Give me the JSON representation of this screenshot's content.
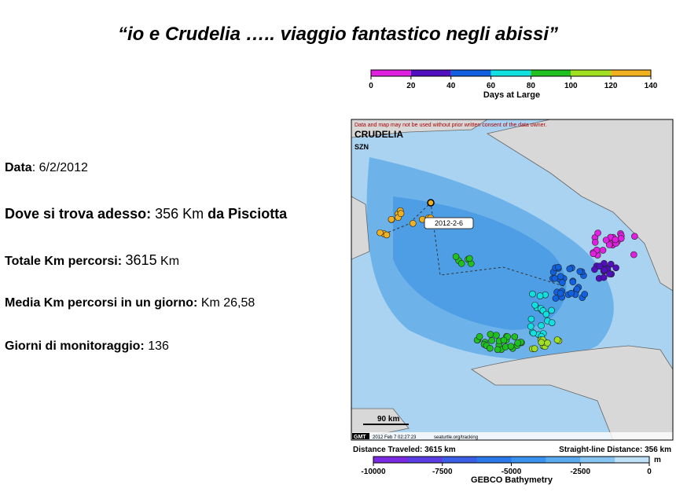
{
  "title": "“io e Crudelia  …..  viaggio fantastico  negli abissi”",
  "info": [
    {
      "label": "Data",
      "sep": ":",
      "value": "6/2/2012"
    },
    {
      "label": "Dove si trova adesso:",
      "value": "356 Km",
      "suffix": "da Pisciotta"
    },
    {
      "label": "Totale Km percorsi:",
      "value": "3615",
      "suffix": "Km"
    },
    {
      "label": "Media Km percorsi in un giorno:",
      "value": "Km 26,58"
    },
    {
      "label": "Giorni di monitoraggio:",
      "value": "136"
    }
  ],
  "days_colorbar": {
    "ticks": [
      0,
      20,
      40,
      60,
      80,
      100,
      120,
      140
    ],
    "label": "Days at Large"
  },
  "map": {
    "disclaimer": "Data and map may not be used without prior written consent of the data owner.",
    "name": "CRUDELIA",
    "org": "SZN",
    "date_label": "2012-2-6",
    "scale": "90 km",
    "gmt": "GMT",
    "timestamp": "2012 Feb  7 02:27:23",
    "site": "seaturtle.org/tracking"
  },
  "distance_traveled": "Distance Traveled: 3615 km",
  "straight_line": "Straight-line Distance: 356 km",
  "bathymetry": {
    "ticks": [
      -10000,
      -7500,
      -5000,
      -2500,
      0
    ],
    "unit": "m",
    "label": "GEBCO Bathymetry"
  }
}
